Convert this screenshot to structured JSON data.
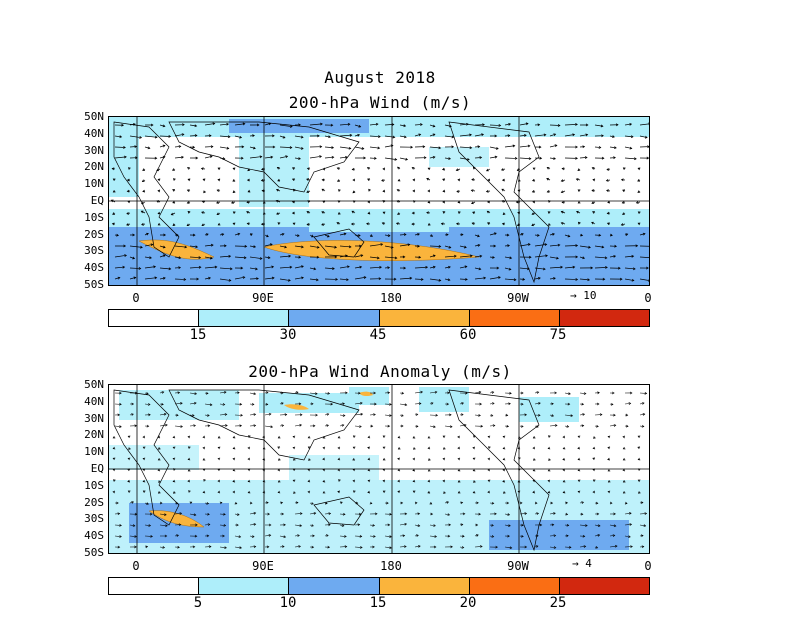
{
  "title": "August 2018",
  "panels": [
    {
      "id": "wind",
      "title": "200-hPa Wind (m/s)",
      "lat_labels": [
        "50N",
        "40N",
        "30N",
        "20N",
        "10N",
        "EQ",
        "10S",
        "20S",
        "30S",
        "40S",
        "50S"
      ],
      "lon_labels": [
        "0",
        "90E",
        "180",
        "90W",
        "0"
      ],
      "ref_vector": "10",
      "colorbar": {
        "colors": [
          "#ffffff",
          "#aeeefa",
          "#6eaaf0",
          "#fab43c",
          "#fa6e14",
          "#d2280f"
        ],
        "labels": [
          "15",
          "30",
          "45",
          "60",
          "75"
        ]
      }
    },
    {
      "id": "anom",
      "title": "200-hPa Wind Anomaly (m/s)",
      "lat_labels": [
        "50N",
        "40N",
        "30N",
        "20N",
        "10N",
        "EQ",
        "10S",
        "20S",
        "30S",
        "40S",
        "50S"
      ],
      "lon_labels": [
        "0",
        "90E",
        "180",
        "90W",
        "0"
      ],
      "ref_vector": "4",
      "colorbar": {
        "colors": [
          "#ffffff",
          "#aeeefa",
          "#6eaaf0",
          "#fab43c",
          "#fa6e14",
          "#d2280f"
        ],
        "labels": [
          "5",
          "10",
          "15",
          "20",
          "25"
        ]
      }
    }
  ]
}
